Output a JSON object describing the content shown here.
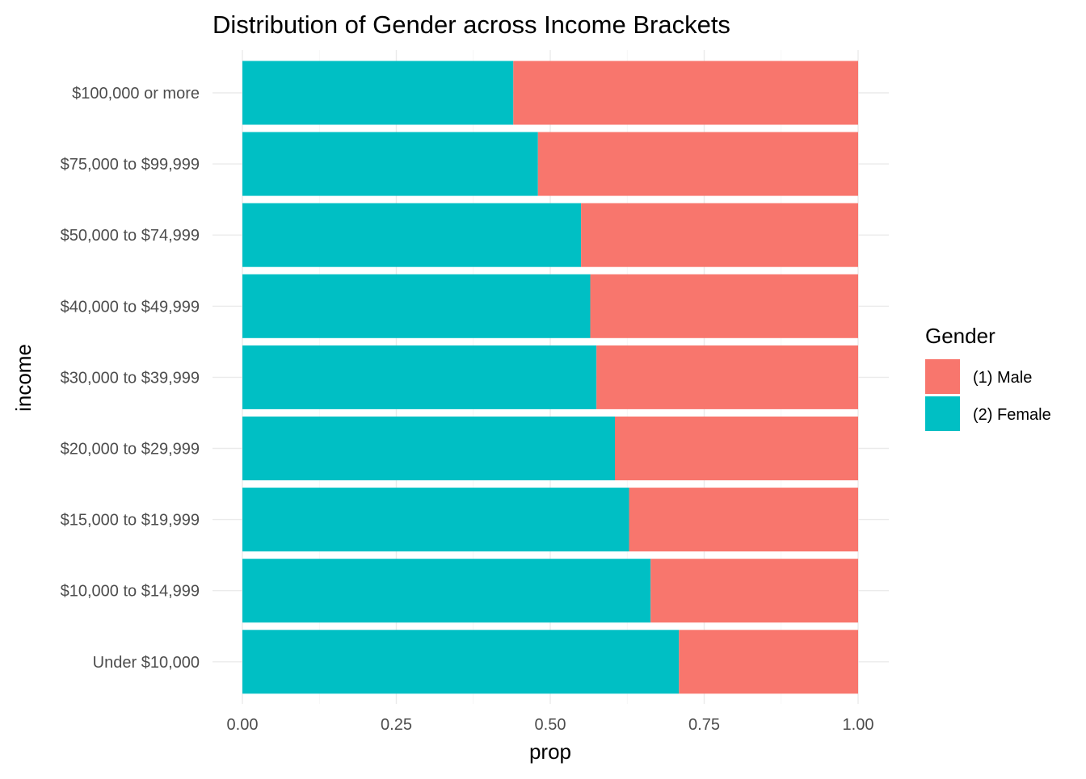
{
  "chart_data": {
    "type": "bar",
    "orientation": "horizontal",
    "stacked": true,
    "title": "Distribution of Gender across Income Brackets",
    "xlabel": "prop",
    "ylabel": "income",
    "xlim": [
      0,
      1
    ],
    "x_ticks": [
      "0.00",
      "0.25",
      "0.50",
      "0.75",
      "1.00"
    ],
    "x_tick_values": [
      0,
      0.25,
      0.5,
      0.75,
      1.0
    ],
    "grid": true,
    "categories": [
      "$100,000 or more",
      "$75,000 to $99,999",
      "$50,000 to $74,999",
      "$40,000 to $49,999",
      "$30,000 to $39,999",
      "$20,000 to $29,999",
      "$15,000 to $19,999",
      "$10,000 to $14,999",
      "Under $10,000"
    ],
    "series": [
      {
        "name": "(2) Female",
        "color": "#00BFC4",
        "values": [
          0.44,
          0.48,
          0.55,
          0.565,
          0.575,
          0.605,
          0.628,
          0.663,
          0.709
        ]
      },
      {
        "name": "(1) Male",
        "color": "#F8766D",
        "values": [
          0.56,
          0.52,
          0.45,
          0.435,
          0.425,
          0.395,
          0.372,
          0.337,
          0.291
        ]
      }
    ],
    "legend": {
      "title": "Gender",
      "position": "right",
      "entries": [
        {
          "label": "(1) Male",
          "color": "#F8766D"
        },
        {
          "label": "(2) Female",
          "color": "#00BFC4"
        }
      ]
    }
  }
}
